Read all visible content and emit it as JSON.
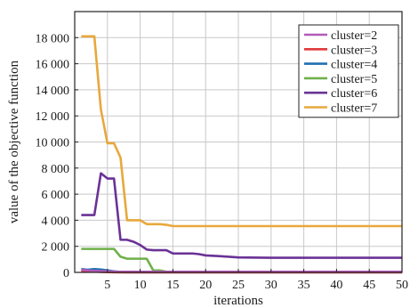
{
  "chart_data": {
    "type": "line",
    "xlabel": "iterations",
    "ylabel": "value of the objective function",
    "xlim": [
      0,
      50
    ],
    "ylim": [
      0,
      20000
    ],
    "xticks": [
      5,
      10,
      15,
      20,
      25,
      30,
      35,
      40,
      45,
      50
    ],
    "yticks": [
      0,
      2000,
      4000,
      6000,
      8000,
      10000,
      12000,
      14000,
      16000,
      18000
    ],
    "ytick_labels": [
      "0",
      "2 000",
      "4 000",
      "6 000",
      "8 000",
      "10 000",
      "12 000",
      "14 000",
      "16 000",
      "18 000"
    ],
    "grid": true,
    "legend_position": "top-right",
    "series": [
      {
        "name": "cluster=2",
        "color": "#b25ab8",
        "x": [
          1,
          2,
          3,
          4,
          5,
          6,
          7,
          50
        ],
        "y": [
          200,
          150,
          120,
          100,
          80,
          60,
          50,
          50
        ]
      },
      {
        "name": "cluster=3",
        "color": "#e03b3b",
        "x": [
          1,
          2,
          3,
          4,
          5,
          6,
          7,
          50
        ],
        "y": [
          100,
          80,
          60,
          40,
          20,
          10,
          0,
          0
        ]
      },
      {
        "name": "cluster=4",
        "color": "#1f6fb2",
        "x": [
          1,
          2,
          3,
          4,
          5,
          6,
          7,
          8,
          50
        ],
        "y": [
          250,
          200,
          250,
          220,
          150,
          80,
          30,
          10,
          10
        ]
      },
      {
        "name": "cluster=5",
        "color": "#6fb04a",
        "x": [
          1,
          2,
          3,
          4,
          5,
          6,
          7,
          8,
          9,
          10,
          11,
          12,
          13,
          14,
          15,
          50
        ],
        "y": [
          1800,
          1800,
          1800,
          1800,
          1800,
          1800,
          1200,
          1050,
          1050,
          1050,
          1050,
          150,
          150,
          50,
          50,
          50
        ]
      },
      {
        "name": "cluster=6",
        "color": "#6a3296",
        "x": [
          1,
          2,
          3,
          4,
          5,
          6,
          7,
          8,
          9,
          10,
          11,
          12,
          13,
          14,
          15,
          16,
          17,
          18,
          19,
          20,
          22,
          25,
          30,
          35,
          40,
          45,
          50
        ],
        "y": [
          4400,
          4400,
          4400,
          7600,
          7200,
          7200,
          2500,
          2500,
          2350,
          2100,
          1750,
          1700,
          1700,
          1700,
          1450,
          1450,
          1450,
          1450,
          1400,
          1300,
          1250,
          1150,
          1120,
          1120,
          1120,
          1120,
          1120
        ]
      },
      {
        "name": "cluster=7",
        "color": "#e8a83c",
        "x": [
          1,
          2,
          3,
          4,
          5,
          6,
          7,
          8,
          9,
          10,
          11,
          12,
          13,
          14,
          15,
          20,
          30,
          40,
          50
        ],
        "y": [
          18100,
          18100,
          18100,
          12500,
          9900,
          9900,
          8800,
          4000,
          4000,
          4000,
          3700,
          3700,
          3700,
          3650,
          3550,
          3550,
          3550,
          3550,
          3550
        ]
      }
    ]
  }
}
